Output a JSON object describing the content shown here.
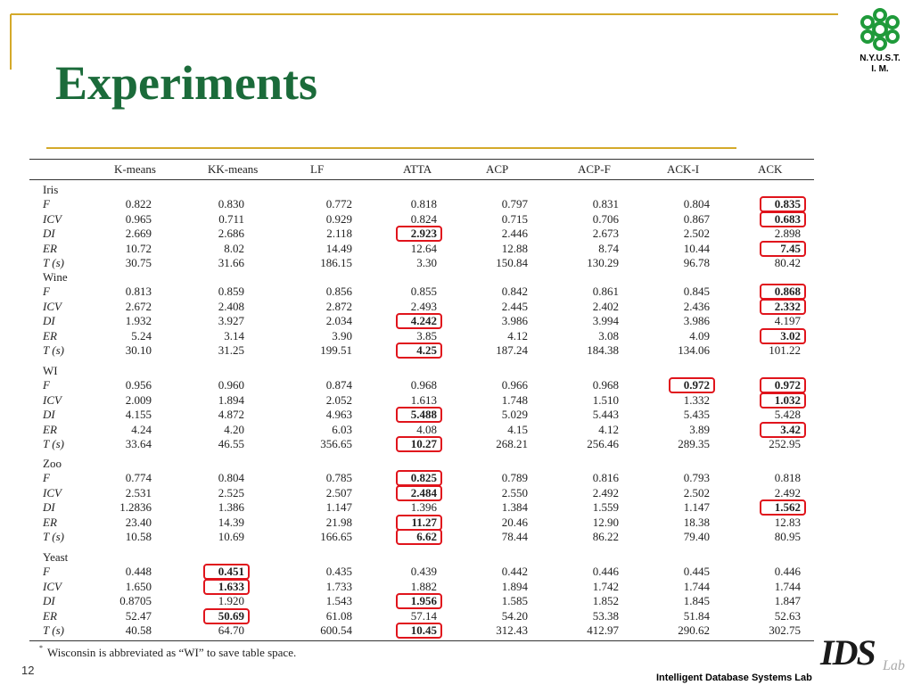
{
  "header": {
    "title": "Experiments",
    "logo_lines": [
      "N.Y.U.S.T.",
      "I. M."
    ]
  },
  "table": {
    "columns": [
      "K-means",
      "KK-means",
      "LF",
      "ATTA",
      "ACP",
      "ACP-F",
      "ACK-I",
      "ACK"
    ],
    "groups": [
      {
        "name": "Iris",
        "rows": [
          {
            "label": "F",
            "values": [
              "0.822",
              "0.830",
              "0.772",
              "0.818",
              "0.797",
              "0.831",
              "0.804",
              "0.835"
            ],
            "boxed": [
              7
            ]
          },
          {
            "label": "ICV",
            "values": [
              "0.965",
              "0.711",
              "0.929",
              "0.824",
              "0.715",
              "0.706",
              "0.867",
              "0.683"
            ],
            "boxed": [
              7
            ]
          },
          {
            "label": "DI",
            "values": [
              "2.669",
              "2.686",
              "2.118",
              "2.923",
              "2.446",
              "2.673",
              "2.502",
              "2.898"
            ],
            "boxed": [
              3
            ]
          },
          {
            "label": "ER",
            "values": [
              "10.72",
              "8.02",
              "14.49",
              "12.64",
              "12.88",
              "8.74",
              "10.44",
              "7.45"
            ],
            "boxed": [
              7
            ]
          },
          {
            "label": "T (s)",
            "values": [
              "30.75",
              "31.66",
              "186.15",
              "3.30",
              "150.84",
              "130.29",
              "96.78",
              "80.42"
            ],
            "boxed": []
          }
        ]
      },
      {
        "name": "Wine",
        "rows": [
          {
            "label": "F",
            "values": [
              "0.813",
              "0.859",
              "0.856",
              "0.855",
              "0.842",
              "0.861",
              "0.845",
              "0.868"
            ],
            "boxed": [
              7
            ]
          },
          {
            "label": "ICV",
            "values": [
              "2.672",
              "2.408",
              "2.872",
              "2.493",
              "2.445",
              "2.402",
              "2.436",
              "2.332"
            ],
            "boxed": [
              7
            ]
          },
          {
            "label": "DI",
            "values": [
              "1.932",
              "3.927",
              "2.034",
              "4.242",
              "3.986",
              "3.994",
              "3.986",
              "4.197"
            ],
            "boxed": [
              3
            ]
          },
          {
            "label": "ER",
            "values": [
              "5.24",
              "3.14",
              "3.90",
              "3.85",
              "4.12",
              "3.08",
              "4.09",
              "3.02"
            ],
            "boxed": [
              7
            ]
          },
          {
            "label": "T (s)",
            "values": [
              "30.10",
              "31.25",
              "199.51",
              "4.25",
              "187.24",
              "184.38",
              "134.06",
              "101.22"
            ],
            "boxed": [
              3
            ]
          }
        ]
      },
      {
        "name": "WI",
        "rows": [
          {
            "label": "F",
            "values": [
              "0.956",
              "0.960",
              "0.874",
              "0.968",
              "0.966",
              "0.968",
              "0.972",
              "0.972"
            ],
            "boxed": [
              6,
              7
            ]
          },
          {
            "label": "ICV",
            "values": [
              "2.009",
              "1.894",
              "2.052",
              "1.613",
              "1.748",
              "1.510",
              "1.332",
              "1.032"
            ],
            "boxed": [
              7
            ]
          },
          {
            "label": "DI",
            "values": [
              "4.155",
              "4.872",
              "4.963",
              "5.488",
              "5.029",
              "5.443",
              "5.435",
              "5.428"
            ],
            "boxed": [
              3
            ]
          },
          {
            "label": "ER",
            "values": [
              "4.24",
              "4.20",
              "6.03",
              "4.08",
              "4.15",
              "4.12",
              "3.89",
              "3.42"
            ],
            "boxed": [
              7
            ]
          },
          {
            "label": "T (s)",
            "values": [
              "33.64",
              "46.55",
              "356.65",
              "10.27",
              "268.21",
              "256.46",
              "289.35",
              "252.95"
            ],
            "boxed": [
              3
            ]
          }
        ]
      },
      {
        "name": "Zoo",
        "rows": [
          {
            "label": "F",
            "values": [
              "0.774",
              "0.804",
              "0.785",
              "0.825",
              "0.789",
              "0.816",
              "0.793",
              "0.818"
            ],
            "boxed": [
              3
            ]
          },
          {
            "label": "ICV",
            "values": [
              "2.531",
              "2.525",
              "2.507",
              "2.484",
              "2.550",
              "2.492",
              "2.502",
              "2.492"
            ],
            "boxed": [
              3
            ]
          },
          {
            "label": "DI",
            "values": [
              "1.2836",
              "1.386",
              "1.147",
              "1.396",
              "1.384",
              "1.559",
              "1.147",
              "1.562"
            ],
            "boxed": [
              7
            ]
          },
          {
            "label": "ER",
            "values": [
              "23.40",
              "14.39",
              "21.98",
              "11.27",
              "20.46",
              "12.90",
              "18.38",
              "12.83"
            ],
            "boxed": [
              3
            ]
          },
          {
            "label": "T (s)",
            "values": [
              "10.58",
              "10.69",
              "166.65",
              "6.62",
              "78.44",
              "86.22",
              "79.40",
              "80.95"
            ],
            "boxed": [
              3
            ]
          }
        ]
      },
      {
        "name": "Yeast",
        "rows": [
          {
            "label": "F",
            "values": [
              "0.448",
              "0.451",
              "0.435",
              "0.439",
              "0.442",
              "0.446",
              "0.445",
              "0.446"
            ],
            "boxed": [
              1
            ]
          },
          {
            "label": "ICV",
            "values": [
              "1.650",
              "1.633",
              "1.733",
              "1.882",
              "1.894",
              "1.742",
              "1.744",
              "1.744"
            ],
            "boxed": [
              1
            ]
          },
          {
            "label": "DI",
            "values": [
              "0.8705",
              "1.920",
              "1.543",
              "1.956",
              "1.585",
              "1.852",
              "1.845",
              "1.847"
            ],
            "boxed": [
              3
            ]
          },
          {
            "label": "ER",
            "values": [
              "52.47",
              "50.69",
              "61.08",
              "57.14",
              "54.20",
              "53.38",
              "51.84",
              "52.63"
            ],
            "boxed": [
              1
            ]
          },
          {
            "label": "T (s)",
            "values": [
              "40.58",
              "64.70",
              "600.54",
              "10.45",
              "312.43",
              "412.97",
              "290.62",
              "302.75"
            ],
            "boxed": [
              3
            ]
          }
        ]
      }
    ],
    "footnote_marker": "*",
    "footnote": "Wisconsin is abbreviated as “WI” to save table space."
  },
  "footer": {
    "page_number": "12",
    "lab": "Intelligent Database Systems Lab",
    "logo_text": "IDS",
    "logo_suffix": "Lab"
  }
}
